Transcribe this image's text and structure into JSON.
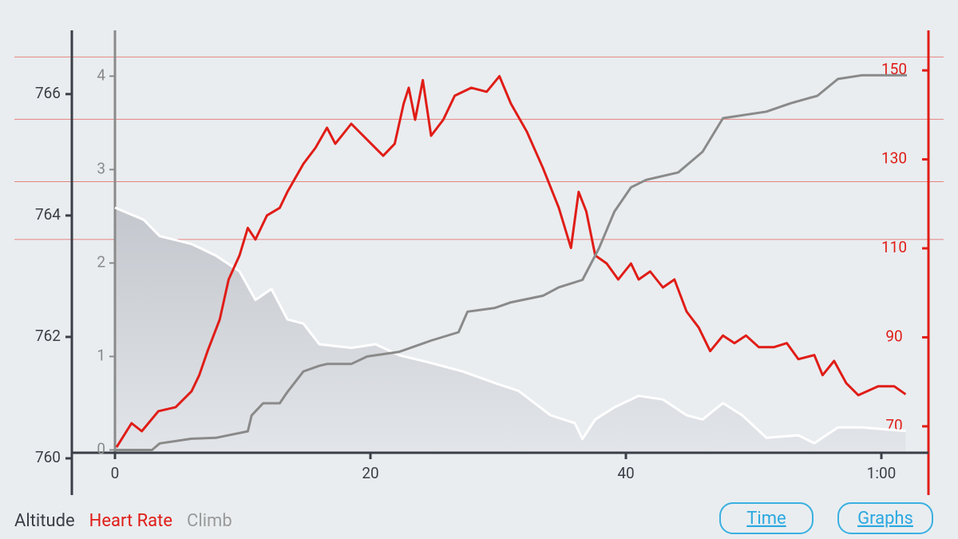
{
  "chart_data": {
    "type": "line",
    "xlim": [
      0,
      62.25
    ],
    "xticks": [
      0,
      20,
      40,
      {
        "value": 60,
        "label": "1:00"
      }
    ],
    "ylim": [
      760,
      767.05
    ],
    "yticks": [
      760,
      762,
      764,
      766
    ],
    "y2lim": [
      62.8,
      159
    ],
    "y2ticks": [
      70,
      90,
      110,
      130,
      150
    ],
    "y3lim": [
      -0.09,
      4.49
    ],
    "y3ticks": [
      0,
      1,
      2,
      3,
      4
    ],
    "hr_zones": [
      153,
      139,
      125,
      112
    ],
    "series": [
      {
        "name": "Altitude",
        "color": "#ffffff",
        "axis": "y",
        "x": [
          0,
          2.25,
          3.5,
          6,
          7.9,
          9.75,
          11,
          12.25,
          13.5,
          14.75,
          16,
          18.5,
          20.4,
          22.25,
          24.75,
          27.25,
          29.75,
          31.6,
          34.1,
          36,
          36.6,
          37.6,
          39.1,
          41,
          42.9,
          44.75,
          46,
          47.6,
          49.1,
          51,
          53.5,
          54.75,
          56.6,
          58.5,
          61.9
        ],
        "values": [
          764.13,
          763.93,
          763.66,
          763.53,
          763.34,
          763.08,
          762.61,
          762.79,
          762.29,
          762.22,
          761.88,
          761.82,
          761.88,
          761.7,
          761.57,
          761.43,
          761.24,
          761.11,
          760.71,
          760.58,
          760.32,
          760.64,
          760.84,
          761.03,
          760.97,
          760.71,
          760.64,
          760.91,
          760.71,
          760.34,
          760.38,
          760.25,
          760.51,
          760.51,
          760.45
        ]
      },
      {
        "name": "Heart Rate",
        "color": "#e01d17",
        "axis": "y2",
        "x": [
          0.125,
          1.3,
          2.1,
          3.4,
          4.75,
          6,
          6.6,
          7.25,
          8.2,
          8.9,
          9.75,
          10.4,
          11,
          11.9,
          12.9,
          13.5,
          14.75,
          15.7,
          16.6,
          17.25,
          18.5,
          19.75,
          21,
          21.9,
          22.6,
          23,
          23.5,
          24.1,
          24.75,
          25.7,
          26.6,
          27.9,
          29.1,
          30.1,
          31,
          32.25,
          33.5,
          34.75,
          35.7,
          36.3,
          36.9,
          37.6,
          38.5,
          39.4,
          40.4,
          41,
          41.9,
          42.9,
          43.8,
          44.75,
          45.7,
          46.6,
          47.6,
          48.5,
          49.4,
          50.4,
          51.6,
          52.6,
          53.5,
          54.75,
          55.4,
          56.3,
          57.25,
          58.2,
          59.75,
          61,
          61.9
        ],
        "values": [
          65.3,
          70.7,
          68.9,
          73.4,
          74.3,
          77.9,
          81.5,
          86.9,
          94,
          103,
          108.4,
          114.6,
          112,
          117.4,
          119.1,
          122.7,
          129,
          132.6,
          137.1,
          133.5,
          138,
          134.4,
          130.8,
          133.5,
          142.5,
          146.1,
          138.9,
          147.8,
          135.3,
          138.9,
          144.3,
          146.1,
          145.2,
          148.7,
          142.5,
          136.2,
          128.1,
          119.1,
          110.1,
          122.7,
          118.3,
          108.4,
          106.6,
          103,
          106.6,
          103,
          104.8,
          101.2,
          103,
          95.8,
          92.2,
          86.9,
          90.4,
          88.7,
          90.4,
          87.8,
          87.8,
          88.7,
          85.1,
          86,
          81.5,
          84.7,
          79.7,
          77,
          79,
          79,
          77.2
        ]
      },
      {
        "name": "Climb",
        "color": "#8a8a8a",
        "axis": "y3",
        "x": [
          0,
          2.9,
          3.5,
          6,
          7.9,
          10.4,
          10.7,
          11.6,
          12.9,
          13.5,
          14.75,
          16,
          16.6,
          18.5,
          19.75,
          22.25,
          23.5,
          24.75,
          26.9,
          27.6,
          29.75,
          31,
          33.5,
          34.75,
          36.6,
          37.9,
          39.1,
          40.4,
          41.6,
          44.1,
          46,
          47.6,
          51,
          52.9,
          55,
          56.6,
          58.5,
          62
        ],
        "values": [
          0,
          0,
          0.07,
          0.12,
          0.13,
          0.2,
          0.37,
          0.5,
          0.5,
          0.62,
          0.84,
          0.9,
          0.92,
          0.92,
          1,
          1.05,
          1.11,
          1.17,
          1.26,
          1.48,
          1.52,
          1.58,
          1.65,
          1.74,
          1.82,
          2.16,
          2.55,
          2.81,
          2.89,
          2.97,
          3.19,
          3.55,
          3.62,
          3.71,
          3.79,
          3.97,
          4.01,
          4.01
        ]
      }
    ],
    "buttons": [
      "Time",
      "Graphs"
    ]
  }
}
